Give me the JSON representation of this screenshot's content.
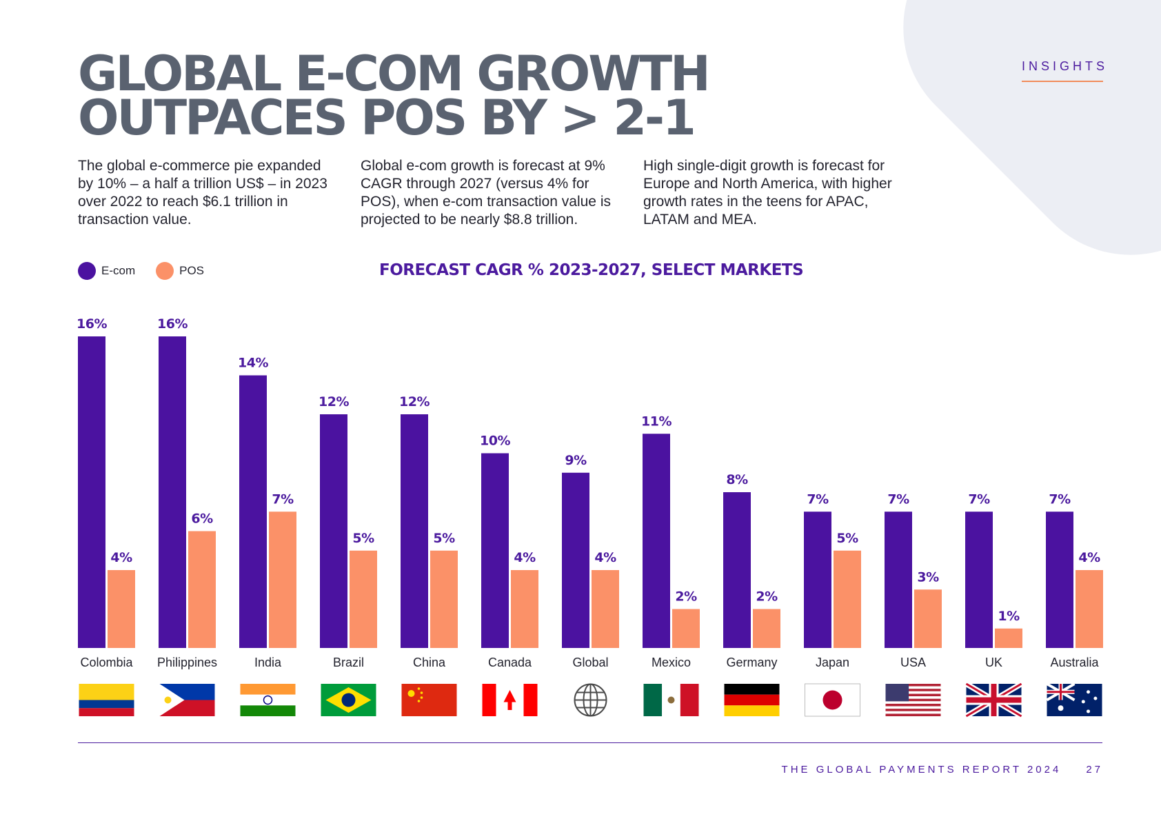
{
  "header": {
    "section_label": "INSIGHTS",
    "title_lines": [
      "GLOBAL E-COM GROWTH",
      "OUTPACES POS BY > 2-1"
    ]
  },
  "intro": {
    "paragraphs": [
      "The global e-commerce pie expanded by 10% – a half a trillion US$ – in 2023 over 2022 to reach $6.1 trillion in transaction value.",
      "Global e-com growth is forecast at 9% CAGR through 2027 (versus 4% for POS), when e-com transaction value is projected to be nearly $8.8 trillion.",
      "High single-digit growth is forecast for Europe and North America, with higher growth rates in the teens for APAC, LATAM and MEA."
    ]
  },
  "colors": {
    "ecom": "#4b12a0",
    "pos": "#fb9168",
    "text": "#23232e",
    "title": "#5a6270",
    "accent": "#4b1a9e"
  },
  "chart_data": {
    "type": "bar",
    "title": "FORECAST CAGR % 2023-2027, SELECT MARKETS",
    "legend": [
      "E-com",
      "POS"
    ],
    "legend_position": "top-left",
    "categories": [
      "Colombia",
      "Philippines",
      "India",
      "Brazil",
      "China",
      "Canada",
      "Global",
      "Mexico",
      "Germany",
      "Japan",
      "USA",
      "UK",
      "Australia"
    ],
    "series": [
      {
        "name": "E-com",
        "values": [
          16,
          16,
          14,
          12,
          12,
          10,
          9,
          11,
          8,
          7,
          7,
          7,
          7
        ],
        "labels": [
          "16%",
          "16%",
          "14%",
          "12%",
          "12%",
          "10%",
          "9%",
          "11%",
          "8%",
          "7%",
          "7%",
          "7%",
          "7%"
        ]
      },
      {
        "name": "POS",
        "values": [
          4,
          6,
          7,
          5,
          5,
          4,
          4,
          2,
          2,
          5,
          3,
          1,
          4
        ],
        "labels": [
          "4%",
          "6%",
          "7%",
          "5%",
          "5%",
          "4%",
          "4%",
          "2%",
          "2%",
          "5%",
          "3%",
          "1%",
          "4%"
        ]
      }
    ],
    "xlabel": "",
    "ylabel": "",
    "ylim": [
      0,
      16
    ],
    "grid": false,
    "flag_icons": [
      "flag-colombia-icon",
      "flag-philippines-icon",
      "flag-india-icon",
      "flag-brazil-icon",
      "flag-china-icon",
      "flag-canada-icon",
      "globe-icon",
      "flag-mexico-icon",
      "flag-germany-icon",
      "flag-japan-icon",
      "flag-usa-icon",
      "flag-uk-icon",
      "flag-australia-icon"
    ]
  },
  "footer": {
    "report_title": "THE GLOBAL PAYMENTS REPORT 2024",
    "page_number": "27"
  }
}
